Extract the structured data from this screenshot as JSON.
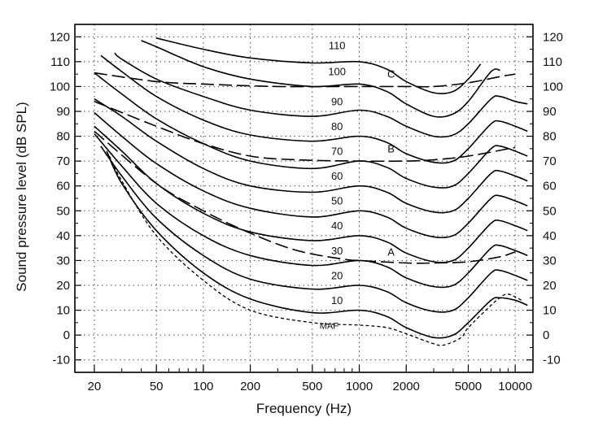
{
  "chart_data": {
    "type": "line",
    "title": "",
    "xlabel": "Frequency (Hz)",
    "ylabel": "Sound pressure level (dB SPL)",
    "xscale": "log",
    "xlim": [
      15,
      13000
    ],
    "ylim": [
      -15,
      125
    ],
    "grid": "dotted",
    "x_ticks": [
      20,
      50,
      100,
      200,
      500,
      1000,
      2000,
      5000,
      10000
    ],
    "x_tick_labels": [
      "20",
      "50",
      "100",
      "200",
      "500",
      "1000",
      "2000",
      "5000",
      "10000"
    ],
    "y_ticks": [
      -10,
      0,
      10,
      20,
      30,
      40,
      50,
      60,
      70,
      80,
      90,
      100,
      110,
      120
    ],
    "y_tick_labels_left": [
      "-10",
      "0",
      "10",
      "20",
      "30",
      "40",
      "50",
      "60",
      "70",
      "80",
      "90",
      "100",
      "110",
      "120"
    ],
    "y_tick_labels_right": [
      "-10",
      "0",
      "10",
      "20",
      "30",
      "40",
      "50",
      "60",
      "70",
      "80",
      "90",
      "100",
      "110",
      "120"
    ],
    "contours": [
      {
        "label": "110",
        "style": "solid",
        "points": [
          [
            50,
            119.5
          ],
          [
            100,
            115
          ],
          [
            200,
            111.5
          ],
          [
            500,
            109.5
          ],
          [
            1000,
            110
          ],
          [
            1500,
            107
          ],
          [
            2000,
            102
          ],
          [
            3000,
            97.5
          ],
          [
            4000,
            98
          ],
          [
            5000,
            103
          ],
          [
            6000,
            109
          ]
        ]
      },
      {
        "label": "100",
        "style": "solid",
        "points": [
          [
            40,
            118.5
          ],
          [
            50,
            116
          ],
          [
            100,
            108
          ],
          [
            200,
            103
          ],
          [
            500,
            100
          ],
          [
            1000,
            101
          ],
          [
            1500,
            98
          ],
          [
            2000,
            93
          ],
          [
            3000,
            88
          ],
          [
            4000,
            89
          ],
          [
            5000,
            94
          ],
          [
            7000,
            106
          ],
          [
            8000,
            106.5
          ]
        ]
      },
      {
        "label": "90",
        "style": "solid",
        "points": [
          [
            27,
            113.5
          ],
          [
            30,
            111
          ],
          [
            50,
            103
          ],
          [
            100,
            96
          ],
          [
            200,
            90.5
          ],
          [
            500,
            88
          ],
          [
            1000,
            90.5
          ],
          [
            1500,
            88
          ],
          [
            2000,
            84
          ],
          [
            3000,
            80
          ],
          [
            4000,
            80.5
          ],
          [
            5000,
            85
          ],
          [
            7000,
            95
          ],
          [
            8000,
            96
          ],
          [
            10000,
            94
          ],
          [
            12000,
            93
          ]
        ]
      },
      {
        "label": "80",
        "style": "solid",
        "points": [
          [
            22,
            112.5
          ],
          [
            30,
            106
          ],
          [
            50,
            96
          ],
          [
            100,
            86.5
          ],
          [
            200,
            80.5
          ],
          [
            500,
            78
          ],
          [
            1000,
            80
          ],
          [
            1500,
            77.5
          ],
          [
            2000,
            73
          ],
          [
            3000,
            69.5
          ],
          [
            4000,
            70
          ],
          [
            5000,
            75
          ],
          [
            7000,
            85
          ],
          [
            8000,
            86
          ],
          [
            10000,
            84
          ],
          [
            12000,
            82
          ]
        ]
      },
      {
        "label": "70",
        "style": "solid",
        "points": [
          [
            20,
            105.5
          ],
          [
            30,
            97
          ],
          [
            50,
            87
          ],
          [
            100,
            77
          ],
          [
            200,
            70
          ],
          [
            500,
            67
          ],
          [
            1000,
            70
          ],
          [
            1500,
            67.5
          ],
          [
            2000,
            63
          ],
          [
            3000,
            59.5
          ],
          [
            4000,
            60
          ],
          [
            5000,
            65
          ],
          [
            7000,
            75
          ],
          [
            8000,
            76
          ],
          [
            10000,
            74
          ],
          [
            12000,
            72
          ]
        ]
      },
      {
        "label": "60",
        "style": "solid",
        "points": [
          [
            20,
            95
          ],
          [
            30,
            88
          ],
          [
            50,
            78
          ],
          [
            100,
            67
          ],
          [
            200,
            60
          ],
          [
            500,
            57.5
          ],
          [
            1000,
            60
          ],
          [
            1500,
            57.5
          ],
          [
            2000,
            53
          ],
          [
            3000,
            49.5
          ],
          [
            4000,
            50
          ],
          [
            5000,
            55
          ],
          [
            7000,
            65
          ],
          [
            8000,
            66
          ],
          [
            10000,
            64
          ],
          [
            12000,
            62
          ]
        ]
      },
      {
        "label": "50",
        "style": "solid",
        "points": [
          [
            20,
            89.5
          ],
          [
            30,
            80
          ],
          [
            50,
            69
          ],
          [
            100,
            58
          ],
          [
            200,
            51
          ],
          [
            500,
            47.5
          ],
          [
            1000,
            50
          ],
          [
            1500,
            47.5
          ],
          [
            2000,
            43
          ],
          [
            3000,
            39.5
          ],
          [
            4000,
            40
          ],
          [
            5000,
            45
          ],
          [
            7000,
            55
          ],
          [
            8000,
            56
          ],
          [
            10000,
            54
          ],
          [
            12000,
            52
          ]
        ]
      },
      {
        "label": "40",
        "style": "solid",
        "points": [
          [
            20,
            84
          ],
          [
            30,
            74
          ],
          [
            50,
            61
          ],
          [
            100,
            49
          ],
          [
            200,
            41.5
          ],
          [
            500,
            38
          ],
          [
            1000,
            40
          ],
          [
            1500,
            37.5
          ],
          [
            2000,
            33
          ],
          [
            3000,
            29.5
          ],
          [
            4000,
            30
          ],
          [
            5000,
            35
          ],
          [
            7000,
            45
          ],
          [
            8000,
            46
          ],
          [
            10000,
            44
          ],
          [
            12000,
            42
          ]
        ]
      },
      {
        "label": "30",
        "style": "solid",
        "points": [
          [
            20,
            81
          ],
          [
            30,
            68
          ],
          [
            50,
            53
          ],
          [
            100,
            40
          ],
          [
            200,
            32
          ],
          [
            500,
            28
          ],
          [
            1000,
            30
          ],
          [
            1500,
            27.5
          ],
          [
            2000,
            23
          ],
          [
            3000,
            19.5
          ],
          [
            4000,
            20
          ],
          [
            5000,
            25
          ],
          [
            7000,
            35
          ],
          [
            8000,
            36
          ],
          [
            10000,
            34
          ],
          [
            12000,
            32
          ]
        ]
      },
      {
        "label": "20",
        "style": "solid",
        "points": [
          [
            22,
            76
          ],
          [
            30,
            64
          ],
          [
            50,
            47
          ],
          [
            100,
            32
          ],
          [
            200,
            22.5
          ],
          [
            500,
            18.5
          ],
          [
            1000,
            20
          ],
          [
            1500,
            17.5
          ],
          [
            2000,
            13
          ],
          [
            3000,
            9.5
          ],
          [
            4000,
            10
          ],
          [
            5000,
            15
          ],
          [
            7000,
            25
          ],
          [
            8000,
            26
          ],
          [
            10000,
            24
          ],
          [
            12000,
            22
          ]
        ]
      },
      {
        "label": "10",
        "style": "solid",
        "points": [
          [
            24,
            74
          ],
          [
            30,
            61
          ],
          [
            50,
            42
          ],
          [
            100,
            25
          ],
          [
            200,
            14.5
          ],
          [
            500,
            9
          ],
          [
            1000,
            10
          ],
          [
            1500,
            7.5
          ],
          [
            2000,
            3
          ],
          [
            3000,
            -1
          ],
          [
            4000,
            0
          ],
          [
            5000,
            5
          ],
          [
            7000,
            14
          ],
          [
            8000,
            15
          ],
          [
            10000,
            14
          ],
          [
            12000,
            12
          ]
        ]
      },
      {
        "label": "MAF",
        "style": "short-dash",
        "points": [
          [
            25,
            72
          ],
          [
            30,
            62
          ],
          [
            50,
            40
          ],
          [
            100,
            22
          ],
          [
            200,
            10
          ],
          [
            500,
            5
          ],
          [
            1000,
            4
          ],
          [
            1500,
            3
          ],
          [
            2000,
            0.5
          ],
          [
            3000,
            -3.5
          ],
          [
            3500,
            -4
          ],
          [
            4500,
            -1
          ],
          [
            5000,
            3
          ],
          [
            7000,
            12
          ],
          [
            8000,
            15
          ],
          [
            9000,
            16.5
          ],
          [
            11000,
            14
          ]
        ]
      }
    ],
    "weighting_curves": [
      {
        "label": "C",
        "style": "long-dash",
        "points": [
          [
            20,
            105.5
          ],
          [
            50,
            102
          ],
          [
            100,
            101
          ],
          [
            300,
            100
          ],
          [
            1000,
            100
          ],
          [
            2000,
            100
          ],
          [
            3000,
            100
          ],
          [
            5000,
            101.5
          ],
          [
            8000,
            104
          ],
          [
            10000,
            105
          ]
        ]
      },
      {
        "label": "B",
        "style": "long-dash",
        "points": [
          [
            20,
            94
          ],
          [
            50,
            84
          ],
          [
            100,
            77
          ],
          [
            200,
            72
          ],
          [
            400,
            70.5
          ],
          [
            1000,
            70
          ],
          [
            2000,
            70
          ],
          [
            3000,
            70.5
          ],
          [
            5000,
            72
          ],
          [
            10000,
            75.5
          ]
        ]
      },
      {
        "label": "A",
        "style": "long-dash",
        "points": [
          [
            20,
            82
          ],
          [
            50,
            61
          ],
          [
            100,
            50
          ],
          [
            200,
            41
          ],
          [
            400,
            34
          ],
          [
            800,
            30.5
          ],
          [
            1000,
            30
          ],
          [
            2000,
            29
          ],
          [
            3000,
            29
          ],
          [
            5000,
            29.5
          ],
          [
            8000,
            31.5
          ],
          [
            10000,
            33.5
          ]
        ]
      }
    ]
  }
}
